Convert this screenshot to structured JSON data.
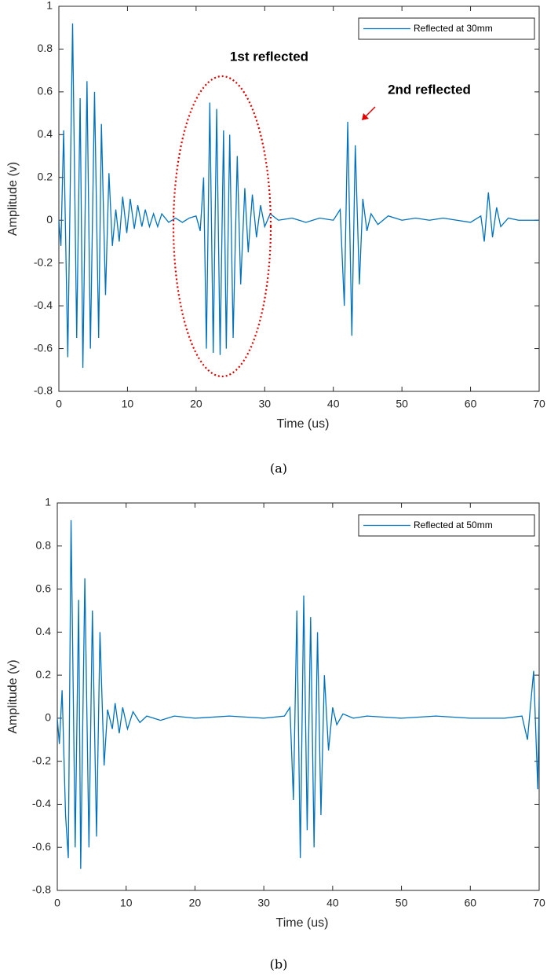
{
  "chart_data": [
    {
      "type": "line",
      "caption": "(a)",
      "xlabel": "Time (us)",
      "ylabel": "Amplitude (v)",
      "annotations": [
        "1st reflected",
        "2nd reflected"
      ],
      "legend": "upper right",
      "xlim": [
        0,
        70
      ],
      "ylim": [
        -0.8,
        1
      ],
      "xticks": [
        0,
        10,
        20,
        30,
        40,
        50,
        60,
        70
      ],
      "yticks": [
        -0.8,
        -0.6,
        -0.4,
        -0.2,
        0,
        0.2,
        0.4,
        0.6,
        0.8,
        1
      ],
      "x": [
        0,
        0.3,
        0.7,
        1.3,
        2.0,
        2.6,
        3.1,
        3.5,
        4.1,
        4.6,
        5.2,
        5.8,
        6.2,
        6.8,
        7.3,
        7.8,
        8.3,
        8.8,
        9.3,
        9.9,
        10.4,
        11,
        11.5,
        12.1,
        12.6,
        13.2,
        13.8,
        14.4,
        15,
        16,
        17,
        18,
        19,
        20,
        20.6,
        21.1,
        21.5,
        22.0,
        22.5,
        23.0,
        23.5,
        24.0,
        24.4,
        24.9,
        25.4,
        26.0,
        26.5,
        27.1,
        27.6,
        28.2,
        28.8,
        29.4,
        30,
        30.8,
        32,
        34,
        36,
        38,
        40,
        41,
        41.6,
        42.1,
        42.7,
        43.2,
        43.8,
        44.3,
        44.9,
        45.5,
        46.5,
        48,
        50,
        52,
        54,
        56,
        58,
        60,
        61.5,
        62,
        62.6,
        63.2,
        63.8,
        64.4,
        65.5,
        67,
        70
      ],
      "series": [
        {
          "name": "Reflected at 30mm",
          "color": "#0072bd",
          "values": [
            0,
            -0.12,
            0.42,
            -0.64,
            0.92,
            -0.55,
            0.57,
            -0.69,
            0.65,
            -0.6,
            0.6,
            -0.55,
            0.45,
            -0.35,
            0.22,
            -0.12,
            0.05,
            -0.1,
            0.11,
            -0.06,
            0.1,
            -0.04,
            0.07,
            -0.03,
            0.05,
            -0.03,
            0.03,
            -0.03,
            0.03,
            -0.01,
            0.01,
            -0.01,
            0.01,
            0.02,
            -0.05,
            0.2,
            -0.6,
            0.55,
            -0.62,
            0.52,
            -0.63,
            0.42,
            -0.6,
            0.4,
            -0.55,
            0.3,
            -0.3,
            0.15,
            -0.15,
            0.12,
            -0.08,
            0.07,
            -0.03,
            0.03,
            0,
            0.01,
            -0.01,
            0.01,
            0,
            0.05,
            -0.4,
            0.46,
            -0.54,
            0.35,
            -0.3,
            0.1,
            -0.05,
            0.03,
            -0.02,
            0.02,
            0,
            0.01,
            0,
            0.01,
            0,
            -0.01,
            0.02,
            -0.1,
            0.13,
            -0.08,
            0.06,
            -0.03,
            0.01,
            0,
            0
          ]
        }
      ]
    },
    {
      "type": "line",
      "caption": "(b)",
      "xlabel": "Time (us)",
      "ylabel": "Amplitude (v)",
      "legend": "upper right",
      "xlim": [
        0,
        70
      ],
      "ylim": [
        -0.8,
        1
      ],
      "xticks": [
        0,
        10,
        20,
        30,
        40,
        50,
        60,
        70
      ],
      "yticks": [
        -0.8,
        -0.6,
        -0.4,
        -0.2,
        0,
        0.2,
        0.4,
        0.6,
        0.8,
        1
      ],
      "x": [
        0,
        0.3,
        0.7,
        1.2,
        1.6,
        2.0,
        2.6,
        3.1,
        3.4,
        4.0,
        4.6,
        5.1,
        5.7,
        6.2,
        6.8,
        7.3,
        8.0,
        8.4,
        9,
        9.5,
        10.2,
        11,
        12,
        13,
        15,
        17,
        20,
        25,
        30,
        33,
        33.8,
        34.3,
        34.8,
        35.3,
        35.8,
        36.3,
        36.8,
        37.3,
        37.8,
        38.3,
        38.8,
        39.4,
        40,
        40.6,
        41.5,
        43,
        45,
        50,
        55,
        60,
        65,
        67.5,
        68.3,
        69.2,
        69.8,
        70
      ],
      "series": [
        {
          "name": "Reflected at 50mm",
          "color": "#0072bd",
          "values": [
            0,
            -0.12,
            0.13,
            -0.45,
            -0.65,
            0.92,
            -0.6,
            0.55,
            -0.7,
            0.65,
            -0.6,
            0.5,
            -0.55,
            0.4,
            -0.22,
            0.04,
            -0.05,
            0.07,
            -0.07,
            0.05,
            -0.05,
            0.03,
            -0.02,
            0.01,
            -0.01,
            0.01,
            0,
            0.01,
            0,
            0.01,
            0.05,
            -0.38,
            0.5,
            -0.65,
            0.57,
            -0.52,
            0.47,
            -0.6,
            0.4,
            -0.45,
            0.2,
            -0.15,
            0.05,
            -0.03,
            0.02,
            0,
            0.01,
            0,
            0.01,
            0,
            0,
            0.01,
            -0.1,
            0.22,
            -0.33,
            0.1
          ]
        }
      ]
    }
  ]
}
